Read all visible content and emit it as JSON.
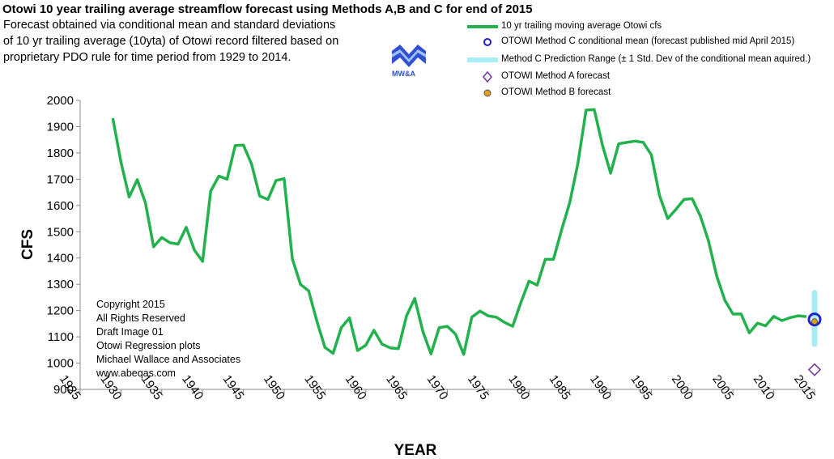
{
  "title": "Otowi 10 year trailing average streamflow forecast  using Methods A,B and C for end of 2015",
  "subtitle_lines": [
    "Forecast obtained via conditional mean and standard deviations",
    "of 10 yr trailing average (10yta) of Otowi record filtered based on",
    "proprietary PDO rule for time period from 1929 to 2014."
  ],
  "logo_text": "MW&A",
  "copyright_lines": [
    "Copyright  2015",
    "All Rights Reserved",
    "Draft Image 01",
    "Otowi Regression plots",
    "Michael Wallace and Associates",
    "www.abeqas.com"
  ],
  "colors": {
    "series_line": "#22b14c",
    "method_c_marker": "#1f1fd0",
    "prediction_range": "#a8ecf5",
    "method_a_marker": "#7030a0",
    "method_b_marker": "#e0a020"
  },
  "chart_data": {
    "type": "line",
    "xlabel": "YEAR",
    "ylabel": "CFS",
    "xlim": [
      1925,
      2015
    ],
    "ylim": [
      900,
      2000
    ],
    "xticks": [
      1925,
      1930,
      1935,
      1940,
      1945,
      1950,
      1955,
      1960,
      1965,
      1970,
      1975,
      1980,
      1985,
      1990,
      1995,
      2000,
      2005,
      2010,
      2015
    ],
    "yticks": [
      900,
      1000,
      1100,
      1200,
      1300,
      1400,
      1500,
      1600,
      1700,
      1800,
      1900,
      2000
    ],
    "grid": false,
    "legend_position": "top-right",
    "legend": [
      "10 yr trailing moving average Otowi cfs",
      "OTOWI Method C conditional mean (forecast published mid April 2015)",
      "Method C Prediction Range  (± 1 Std. Dev of the conditional mean aquired.)",
      "OTOWI Method A forecast",
      "OTOWI Method B forecast"
    ],
    "series": [
      {
        "name": "10 yr trailing moving average Otowi cfs",
        "x": [
          1929,
          1930,
          1931,
          1932,
          1933,
          1934,
          1935,
          1936,
          1937,
          1938,
          1939,
          1940,
          1941,
          1942,
          1943,
          1944,
          1945,
          1946,
          1947,
          1948,
          1949,
          1950,
          1951,
          1952,
          1953,
          1954,
          1955,
          1956,
          1957,
          1958,
          1959,
          1960,
          1961,
          1962,
          1963,
          1964,
          1965,
          1966,
          1967,
          1968,
          1969,
          1970,
          1971,
          1972,
          1973,
          1974,
          1975,
          1976,
          1977,
          1978,
          1979,
          1980,
          1981,
          1982,
          1983,
          1984,
          1985,
          1986,
          1987,
          1988,
          1989,
          1990,
          1991,
          1992,
          1993,
          1994,
          1995,
          1996,
          1997,
          1998,
          1999,
          2000,
          2001,
          2002,
          2003,
          2004,
          2005,
          2006,
          2007,
          2008,
          2009,
          2010,
          2011,
          2012,
          2013,
          2014
        ],
        "y": [
          1932,
          1765,
          1632,
          1698,
          1610,
          1443,
          1478,
          1458,
          1453,
          1517,
          1430,
          1387,
          1655,
          1712,
          1700,
          1828,
          1830,
          1758,
          1636,
          1623,
          1695,
          1702,
          1397,
          1300,
          1275,
          1160,
          1060,
          1037,
          1135,
          1172,
          1048,
          1068,
          1125,
          1072,
          1058,
          1055,
          1180,
          1246,
          1120,
          1035,
          1135,
          1140,
          1110,
          1033,
          1175,
          1198,
          1180,
          1175,
          1155,
          1140,
          1230,
          1312,
          1297,
          1395,
          1395,
          1507,
          1612,
          1760,
          1963,
          1965,
          1830,
          1723,
          1835,
          1840,
          1845,
          1840,
          1793,
          1638,
          1550,
          1585,
          1623,
          1626,
          1560,
          1465,
          1332,
          1240,
          1187,
          1187,
          1115,
          1152,
          1142,
          1178,
          1162,
          1173,
          1180,
          1177
        ]
      },
      {
        "name": "OTOWI Method C conditional mean (forecast published mid April 2015)",
        "x": [
          2015
        ],
        "y": [
          1166
        ]
      },
      {
        "name": "Method C Prediction Range  (± 1 Std. Dev of the conditional mean aquired.)",
        "x": [
          2015
        ],
        "low": [
          1072
        ],
        "high": [
          1268
        ]
      },
      {
        "name": "OTOWI Method A forecast",
        "x": [
          2015
        ],
        "y": [
          975
        ]
      },
      {
        "name": "OTOWI Method B forecast",
        "x": [
          2015
        ],
        "y": [
          1158
        ]
      }
    ]
  }
}
